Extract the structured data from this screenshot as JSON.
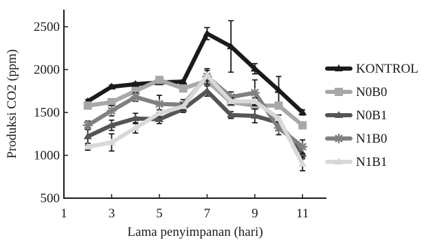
{
  "chart_data": {
    "type": "line",
    "xlabel": "Lama penyimpanan (hari)",
    "ylabel": "Produksi CO2 (ppm)",
    "xlim": [
      1,
      12
    ],
    "ylim": [
      500,
      2700
    ],
    "xticks": [
      1,
      3,
      5,
      7,
      9,
      11
    ],
    "yticks": [
      500,
      1000,
      1500,
      2000,
      2500
    ],
    "x": [
      2,
      3,
      4,
      5,
      6,
      7,
      8,
      9,
      10,
      11
    ],
    "legend_position": "right",
    "series": [
      {
        "name": "KONTROL",
        "color": "#1a1a1a",
        "marker": "triangle",
        "values": [
          1630,
          1800,
          1830,
          1850,
          1860,
          2420,
          2270,
          2010,
          1760,
          1500
        ],
        "errors": [
          20,
          20,
          20,
          20,
          20,
          70,
          300,
          60,
          160,
          30
        ]
      },
      {
        "name": "N0B0",
        "color": "#a8a8a8",
        "marker": "square",
        "values": [
          1580,
          1620,
          1750,
          1880,
          1780,
          1870,
          1620,
          1580,
          1580,
          1350
        ],
        "errors": [
          30,
          30,
          30,
          30,
          30,
          30,
          30,
          30,
          30,
          30
        ]
      },
      {
        "name": "N0B1",
        "color": "#555555",
        "marker": "triangle",
        "values": [
          1220,
          1350,
          1430,
          1420,
          1540,
          1750,
          1470,
          1460,
          1380,
          1020
        ],
        "errors": [
          100,
          60,
          60,
          50,
          40,
          60,
          40,
          80,
          90,
          60
        ]
      },
      {
        "name": "N1B0",
        "color": "#808080",
        "marker": "star",
        "values": [
          1350,
          1520,
          1680,
          1600,
          1590,
          1920,
          1680,
          1730,
          1320,
          1100
        ],
        "errors": [
          50,
          60,
          50,
          100,
          60,
          90,
          60,
          150,
          80,
          80
        ]
      },
      {
        "name": "N1B1",
        "color": "#d8d8d8",
        "marker": "triangle",
        "values": [
          1100,
          1150,
          1320,
          1490,
          1570,
          1930,
          1630,
          1630,
          1430,
          900
        ],
        "errors": [
          40,
          100,
          60,
          40,
          40,
          60,
          40,
          40,
          40,
          80
        ]
      }
    ]
  }
}
